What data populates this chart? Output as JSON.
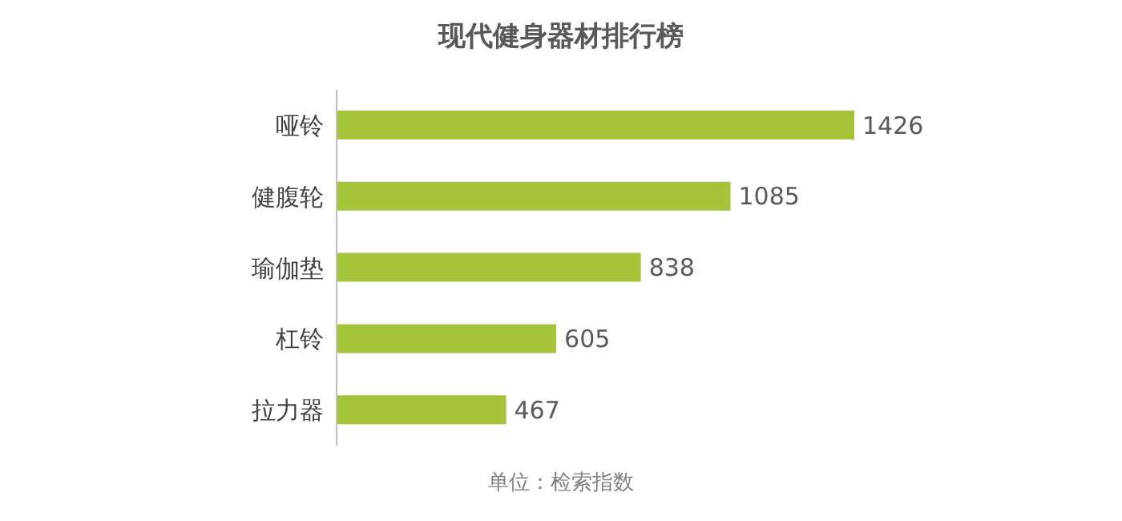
{
  "chart_data": {
    "type": "bar",
    "orientation": "horizontal",
    "title": "现代健身器材排行榜",
    "categories": [
      "哑铃",
      "健腹轮",
      "瑜伽垫",
      "杠铃",
      "拉力器"
    ],
    "values": [
      1426,
      1085,
      838,
      605,
      467
    ],
    "color": "#a5c43a",
    "data_labels": true,
    "annotations": [
      "单位：检索指数"
    ]
  }
}
